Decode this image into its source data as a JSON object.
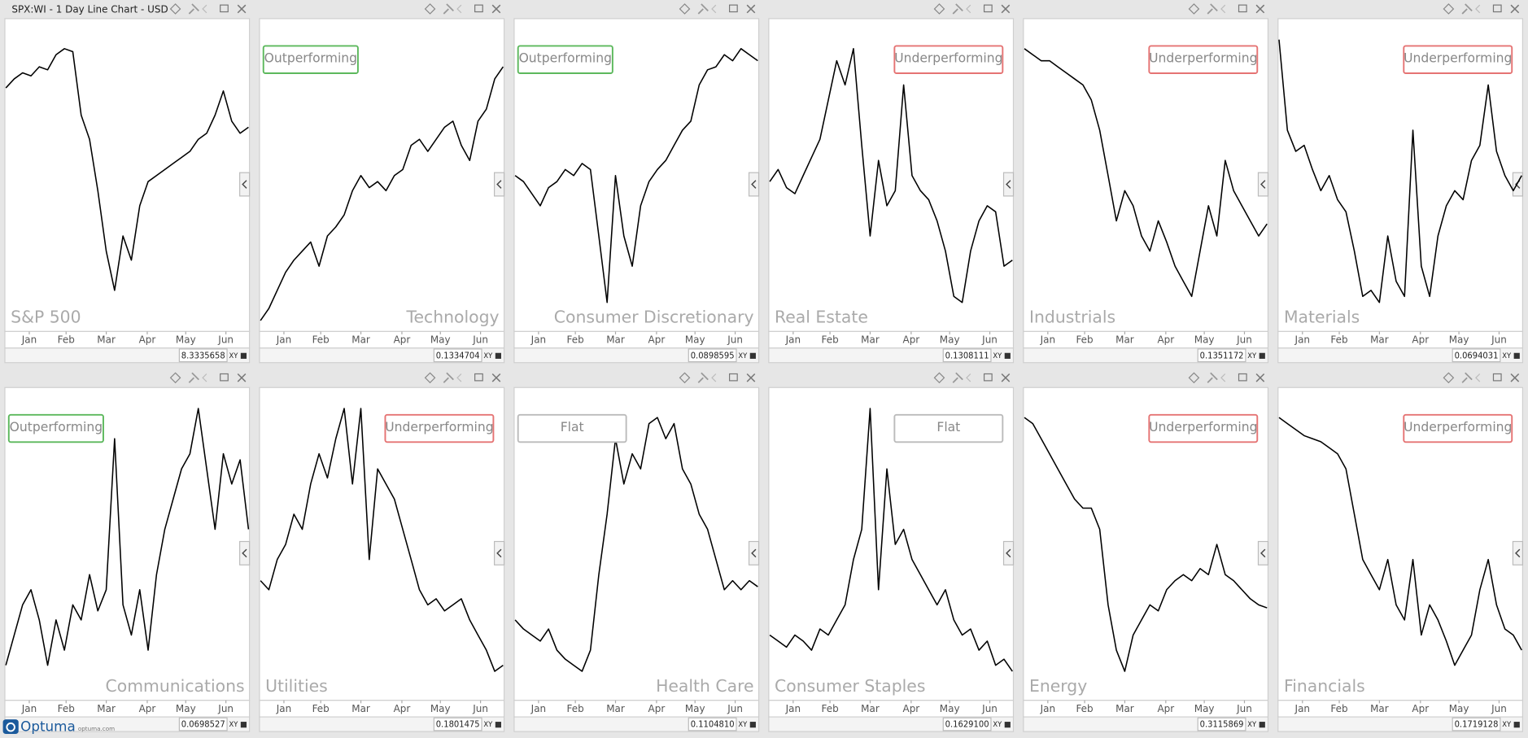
{
  "window_title": "SPX:WI - 1 Day Line Chart - USD",
  "logo": {
    "name": "Optuma",
    "url": "optuma.com"
  },
  "chart_data": [
    {
      "type": "line",
      "title": "S&P 500",
      "title_corner": "bottom-left",
      "color": "#000000",
      "ylim": [
        0,
        100
      ],
      "xlim": [
        0,
        29
      ],
      "xticks": [
        {
          "value": 2.8,
          "label": "Jan"
        },
        {
          "value": 7.2,
          "label": "Feb"
        },
        {
          "value": 12,
          "label": "Mar"
        },
        {
          "value": 16.9,
          "label": "Apr"
        },
        {
          "value": 21.5,
          "label": "May"
        },
        {
          "value": 26.3,
          "label": "Jun"
        }
      ],
      "values": [
        79,
        82,
        84,
        83,
        86,
        85,
        90,
        92,
        91,
        70,
        62,
        45,
        25,
        12,
        30,
        22,
        40,
        48,
        50,
        52,
        54,
        56,
        58,
        62,
        64,
        70,
        78,
        68,
        64,
        66
      ],
      "readout": "8.3335658",
      "readout_mode": "XY"
    },
    {
      "type": "line",
      "title": "Technology",
      "title_corner": "bottom-right",
      "status": "Outperforming",
      "status_color": "#5cb85c",
      "status_corner": "top-left",
      "color": "#000000",
      "ylim": [
        0,
        100
      ],
      "xlim": [
        0,
        29
      ],
      "xticks": [
        {
          "value": 2.8,
          "label": "Jan"
        },
        {
          "value": 7.2,
          "label": "Feb"
        },
        {
          "value": 12,
          "label": "Mar"
        },
        {
          "value": 16.9,
          "label": "Apr"
        },
        {
          "value": 21.5,
          "label": "May"
        },
        {
          "value": 26.3,
          "label": "Jun"
        }
      ],
      "values": [
        2,
        6,
        12,
        18,
        22,
        25,
        28,
        20,
        30,
        33,
        37,
        45,
        50,
        46,
        48,
        45,
        50,
        52,
        60,
        62,
        58,
        62,
        66,
        68,
        60,
        55,
        68,
        72,
        82,
        86
      ],
      "readout": "0.1334704",
      "readout_mode": "XY"
    },
    {
      "type": "line",
      "title": "Consumer Discretionary",
      "title_corner": "bottom-right",
      "status": "Outperforming",
      "status_color": "#5cb85c",
      "status_corner": "top-left",
      "color": "#000000",
      "ylim": [
        0,
        100
      ],
      "xlim": [
        0,
        29
      ],
      "xticks": [
        {
          "value": 2.8,
          "label": "Jan"
        },
        {
          "value": 7.2,
          "label": "Feb"
        },
        {
          "value": 12,
          "label": "Mar"
        },
        {
          "value": 16.9,
          "label": "Apr"
        },
        {
          "value": 21.5,
          "label": "May"
        },
        {
          "value": 26.3,
          "label": "Jun"
        }
      ],
      "values": [
        50,
        48,
        44,
        40,
        46,
        48,
        52,
        50,
        54,
        52,
        30,
        8,
        50,
        30,
        20,
        40,
        48,
        52,
        55,
        60,
        65,
        68,
        80,
        85,
        86,
        90,
        88,
        92,
        90,
        88
      ],
      "readout": "0.0898595",
      "readout_mode": "XY"
    },
    {
      "type": "line",
      "title": "Real Estate",
      "title_corner": "bottom-left",
      "status": "Underperforming",
      "status_color": "#e57373",
      "status_corner": "top-right",
      "color": "#000000",
      "ylim": [
        0,
        100
      ],
      "xlim": [
        0,
        29
      ],
      "xticks": [
        {
          "value": 2.8,
          "label": "Jan"
        },
        {
          "value": 7.2,
          "label": "Feb"
        },
        {
          "value": 12,
          "label": "Mar"
        },
        {
          "value": 16.9,
          "label": "Apr"
        },
        {
          "value": 21.5,
          "label": "May"
        },
        {
          "value": 26.3,
          "label": "Jun"
        }
      ],
      "values": [
        48,
        52,
        46,
        44,
        50,
        56,
        62,
        75,
        88,
        80,
        92,
        60,
        30,
        55,
        40,
        45,
        80,
        50,
        45,
        42,
        35,
        25,
        10,
        8,
        25,
        35,
        40,
        38,
        20,
        22
      ],
      "readout": "0.1308111",
      "readout_mode": "XY"
    },
    {
      "type": "line",
      "title": "Industrials",
      "title_corner": "bottom-left",
      "status": "Underperforming",
      "status_color": "#e57373",
      "status_corner": "top-right",
      "color": "#000000",
      "ylim": [
        0,
        100
      ],
      "xlim": [
        0,
        29
      ],
      "xticks": [
        {
          "value": 2.8,
          "label": "Jan"
        },
        {
          "value": 7.2,
          "label": "Feb"
        },
        {
          "value": 12,
          "label": "Mar"
        },
        {
          "value": 16.9,
          "label": "Apr"
        },
        {
          "value": 21.5,
          "label": "May"
        },
        {
          "value": 26.3,
          "label": "Jun"
        }
      ],
      "values": [
        92,
        90,
        88,
        88,
        86,
        84,
        82,
        80,
        75,
        65,
        50,
        35,
        45,
        40,
        30,
        25,
        35,
        28,
        20,
        15,
        10,
        25,
        40,
        30,
        55,
        45,
        40,
        35,
        30,
        34
      ],
      "readout": "0.1351172",
      "readout_mode": "XY"
    },
    {
      "type": "line",
      "title": "Materials",
      "title_corner": "bottom-left",
      "status": "Underperforming",
      "status_color": "#e57373",
      "status_corner": "top-right",
      "color": "#000000",
      "ylim": [
        0,
        100
      ],
      "xlim": [
        0,
        29
      ],
      "xticks": [
        {
          "value": 2.8,
          "label": "Jan"
        },
        {
          "value": 7.2,
          "label": "Feb"
        },
        {
          "value": 12,
          "label": "Mar"
        },
        {
          "value": 16.9,
          "label": "Apr"
        },
        {
          "value": 21.5,
          "label": "May"
        },
        {
          "value": 26.3,
          "label": "Jun"
        }
      ],
      "values": [
        95,
        65,
        58,
        60,
        52,
        45,
        50,
        42,
        38,
        25,
        10,
        12,
        8,
        30,
        15,
        10,
        65,
        20,
        10,
        30,
        40,
        45,
        42,
        55,
        60,
        80,
        58,
        50,
        45,
        50
      ],
      "readout": "0.0694031",
      "readout_mode": "XY"
    },
    {
      "type": "line",
      "title": "Communications",
      "title_corner": "bottom-right",
      "status": "Outperforming",
      "status_color": "#5cb85c",
      "status_corner": "top-left",
      "color": "#000000",
      "ylim": [
        0,
        100
      ],
      "xlim": [
        0,
        29
      ],
      "xticks": [
        {
          "value": 2.8,
          "label": "Jan"
        },
        {
          "value": 7.2,
          "label": "Feb"
        },
        {
          "value": 12,
          "label": "Mar"
        },
        {
          "value": 16.9,
          "label": "Apr"
        },
        {
          "value": 21.5,
          "label": "May"
        },
        {
          "value": 26.3,
          "label": "Jun"
        }
      ],
      "values": [
        10,
        20,
        30,
        35,
        25,
        10,
        25,
        15,
        30,
        25,
        40,
        28,
        35,
        85,
        30,
        20,
        35,
        15,
        40,
        55,
        65,
        75,
        80,
        95,
        75,
        55,
        80,
        70,
        78,
        55
      ],
      "readout": "0.0698527",
      "readout_mode": "XY"
    },
    {
      "type": "line",
      "title": "Utilities",
      "title_corner": "bottom-left",
      "status": "Underperforming",
      "status_color": "#e57373",
      "status_corner": "top-right",
      "color": "#000000",
      "ylim": [
        0,
        100
      ],
      "xlim": [
        0,
        29
      ],
      "xticks": [
        {
          "value": 2.8,
          "label": "Jan"
        },
        {
          "value": 7.2,
          "label": "Feb"
        },
        {
          "value": 12,
          "label": "Mar"
        },
        {
          "value": 16.9,
          "label": "Apr"
        },
        {
          "value": 21.5,
          "label": "May"
        },
        {
          "value": 26.3,
          "label": "Jun"
        }
      ],
      "values": [
        38,
        35,
        45,
        50,
        60,
        55,
        70,
        80,
        72,
        85,
        95,
        70,
        95,
        45,
        75,
        70,
        65,
        55,
        45,
        35,
        30,
        32,
        28,
        30,
        32,
        25,
        20,
        15,
        8,
        10
      ],
      "readout": "0.1801475",
      "readout_mode": "XY"
    },
    {
      "type": "line",
      "title": "Health Care",
      "title_corner": "bottom-right",
      "status": "Flat",
      "status_color": "#bbbbbb",
      "status_corner": "top-left",
      "color": "#000000",
      "ylim": [
        0,
        100
      ],
      "xlim": [
        0,
        29
      ],
      "xticks": [
        {
          "value": 2.8,
          "label": "Jan"
        },
        {
          "value": 7.2,
          "label": "Feb"
        },
        {
          "value": 12,
          "label": "Mar"
        },
        {
          "value": 16.9,
          "label": "Apr"
        },
        {
          "value": 21.5,
          "label": "May"
        },
        {
          "value": 26.3,
          "label": "Jun"
        }
      ],
      "values": [
        25,
        22,
        20,
        18,
        22,
        15,
        12,
        10,
        8,
        15,
        40,
        60,
        85,
        70,
        80,
        75,
        90,
        92,
        85,
        90,
        75,
        70,
        60,
        55,
        45,
        35,
        38,
        35,
        38,
        36
      ],
      "readout": "0.1104810",
      "readout_mode": "XY"
    },
    {
      "type": "line",
      "title": "Consumer Staples",
      "title_corner": "bottom-left",
      "status": "Flat",
      "status_color": "#bbbbbb",
      "status_corner": "top-right",
      "color": "#000000",
      "ylim": [
        0,
        100
      ],
      "xlim": [
        0,
        29
      ],
      "xticks": [
        {
          "value": 2.8,
          "label": "Jan"
        },
        {
          "value": 7.2,
          "label": "Feb"
        },
        {
          "value": 12,
          "label": "Mar"
        },
        {
          "value": 16.9,
          "label": "Apr"
        },
        {
          "value": 21.5,
          "label": "May"
        },
        {
          "value": 26.3,
          "label": "Jun"
        }
      ],
      "values": [
        20,
        18,
        16,
        20,
        18,
        15,
        22,
        20,
        25,
        30,
        45,
        55,
        95,
        35,
        75,
        50,
        55,
        45,
        40,
        35,
        30,
        35,
        25,
        20,
        22,
        15,
        18,
        10,
        12,
        8
      ],
      "readout": "0.1629100",
      "readout_mode": "XY"
    },
    {
      "type": "line",
      "title": "Energy",
      "title_corner": "bottom-left",
      "status": "Underperforming",
      "status_color": "#e57373",
      "status_corner": "top-right",
      "color": "#000000",
      "ylim": [
        0,
        100
      ],
      "xlim": [
        0,
        29
      ],
      "xticks": [
        {
          "value": 2.8,
          "label": "Jan"
        },
        {
          "value": 7.2,
          "label": "Feb"
        },
        {
          "value": 12,
          "label": "Mar"
        },
        {
          "value": 16.9,
          "label": "Apr"
        },
        {
          "value": 21.5,
          "label": "May"
        },
        {
          "value": 26.3,
          "label": "Jun"
        }
      ],
      "values": [
        92,
        90,
        85,
        80,
        75,
        70,
        65,
        62,
        62,
        55,
        30,
        15,
        8,
        20,
        25,
        30,
        28,
        35,
        38,
        40,
        38,
        42,
        40,
        50,
        40,
        38,
        35,
        32,
        30,
        29
      ],
      "readout": "0.3115869",
      "readout_mode": "XY"
    },
    {
      "type": "line",
      "title": "Financials",
      "title_corner": "bottom-left",
      "status": "Underperforming",
      "status_color": "#e57373",
      "status_corner": "top-right",
      "color": "#000000",
      "ylim": [
        0,
        100
      ],
      "xlim": [
        0,
        29
      ],
      "xticks": [
        {
          "value": 2.8,
          "label": "Jan"
        },
        {
          "value": 7.2,
          "label": "Feb"
        },
        {
          "value": 12,
          "label": "Mar"
        },
        {
          "value": 16.9,
          "label": "Apr"
        },
        {
          "value": 21.5,
          "label": "May"
        },
        {
          "value": 26.3,
          "label": "Jun"
        }
      ],
      "values": [
        92,
        90,
        88,
        86,
        85,
        84,
        82,
        80,
        75,
        60,
        45,
        40,
        35,
        45,
        30,
        25,
        45,
        20,
        30,
        25,
        18,
        10,
        15,
        20,
        35,
        45,
        30,
        22,
        20,
        15
      ],
      "readout": "0.1719128",
      "readout_mode": "XY"
    }
  ]
}
